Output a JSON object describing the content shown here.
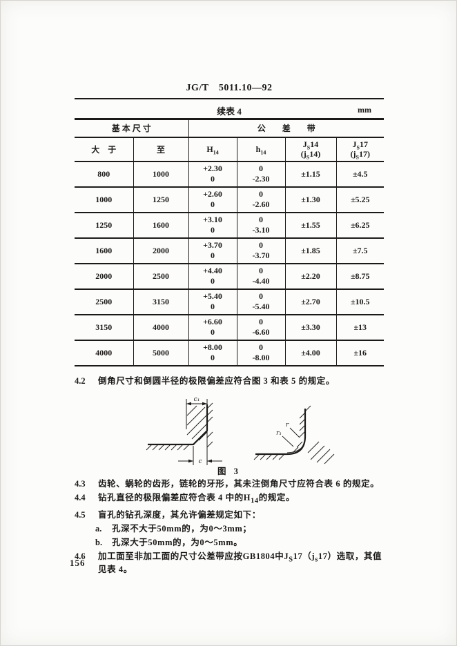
{
  "header": {
    "doc_code": "JG/T　5011.10—92"
  },
  "table": {
    "caption": "续表 4",
    "unit": "mm",
    "group1": "基 本 尺 寸",
    "group2": "公　　差　　带",
    "col_over": "大　于",
    "col_to": "至",
    "col_h": "H~14~",
    "col_hs": "h~14~",
    "col_js14_l1": "J~S~14",
    "col_js14_l2": "(j~S~14)",
    "col_js17_l1": "J~S~17",
    "col_js17_l2": "(j~S~17)",
    "rows": [
      [
        "800",
        "1000",
        "+2.30",
        "0",
        "0",
        "-2.30",
        "±1.15",
        "±4.5"
      ],
      [
        "1000",
        "1250",
        "+2.60",
        "0",
        "0",
        "-2.60",
        "±1.30",
        "±5.25"
      ],
      [
        "1250",
        "1600",
        "+3.10",
        "0",
        "0",
        "-3.10",
        "±1.55",
        "±6.25"
      ],
      [
        "1600",
        "2000",
        "+3.70",
        "0",
        "0",
        "-3.70",
        "±1.85",
        "±7.5"
      ],
      [
        "2000",
        "2500",
        "+4.40",
        "0",
        "0",
        "-4.40",
        "±2.20",
        "±8.75"
      ],
      [
        "2500",
        "3150",
        "+5.40",
        "0",
        "0",
        "-5.40",
        "±2.70",
        "±10.5"
      ],
      [
        "3150",
        "4000",
        "+6.60",
        "0",
        "0",
        "-6.60",
        "±3.30",
        "±13"
      ],
      [
        "4000",
        "5000",
        "+8.00",
        "0",
        "0",
        "-8.00",
        "±4.00",
        "±16"
      ]
    ]
  },
  "clause_42": {
    "num": "4.2",
    "text": "倒角尺寸和倒圆半径的极限偏差应符合图 3 和表 5 的规定。"
  },
  "figure": {
    "caption": "图 3",
    "label_c1": "c₁",
    "label_c": "c",
    "label_r": "r",
    "label_r1": "r₁"
  },
  "clauses": [
    {
      "num": "4.3",
      "text": "齿轮、蜗轮的齿形，链轮的牙形，其未注倒角尺寸应符合表 6 的规定。"
    },
    {
      "num": "4.4",
      "text": "钻孔直径的极限偏差应符合表 4 中的H~14~的规定。"
    },
    {
      "num": "4.5",
      "text": "盲孔的钻孔深度，其允许偏差规定如下："
    },
    {
      "num": "a.",
      "text": "孔深不大于50mm的，为0～3mm；"
    },
    {
      "num": "b.",
      "text": "孔深大于50mm的，为0～5mm。"
    },
    {
      "num": "4.6",
      "text": "加工面至非加工面的尺寸公差带应按GB1804中J~S~17（j~s~17）选取，其值见表 4。"
    }
  ],
  "page_number": "156"
}
